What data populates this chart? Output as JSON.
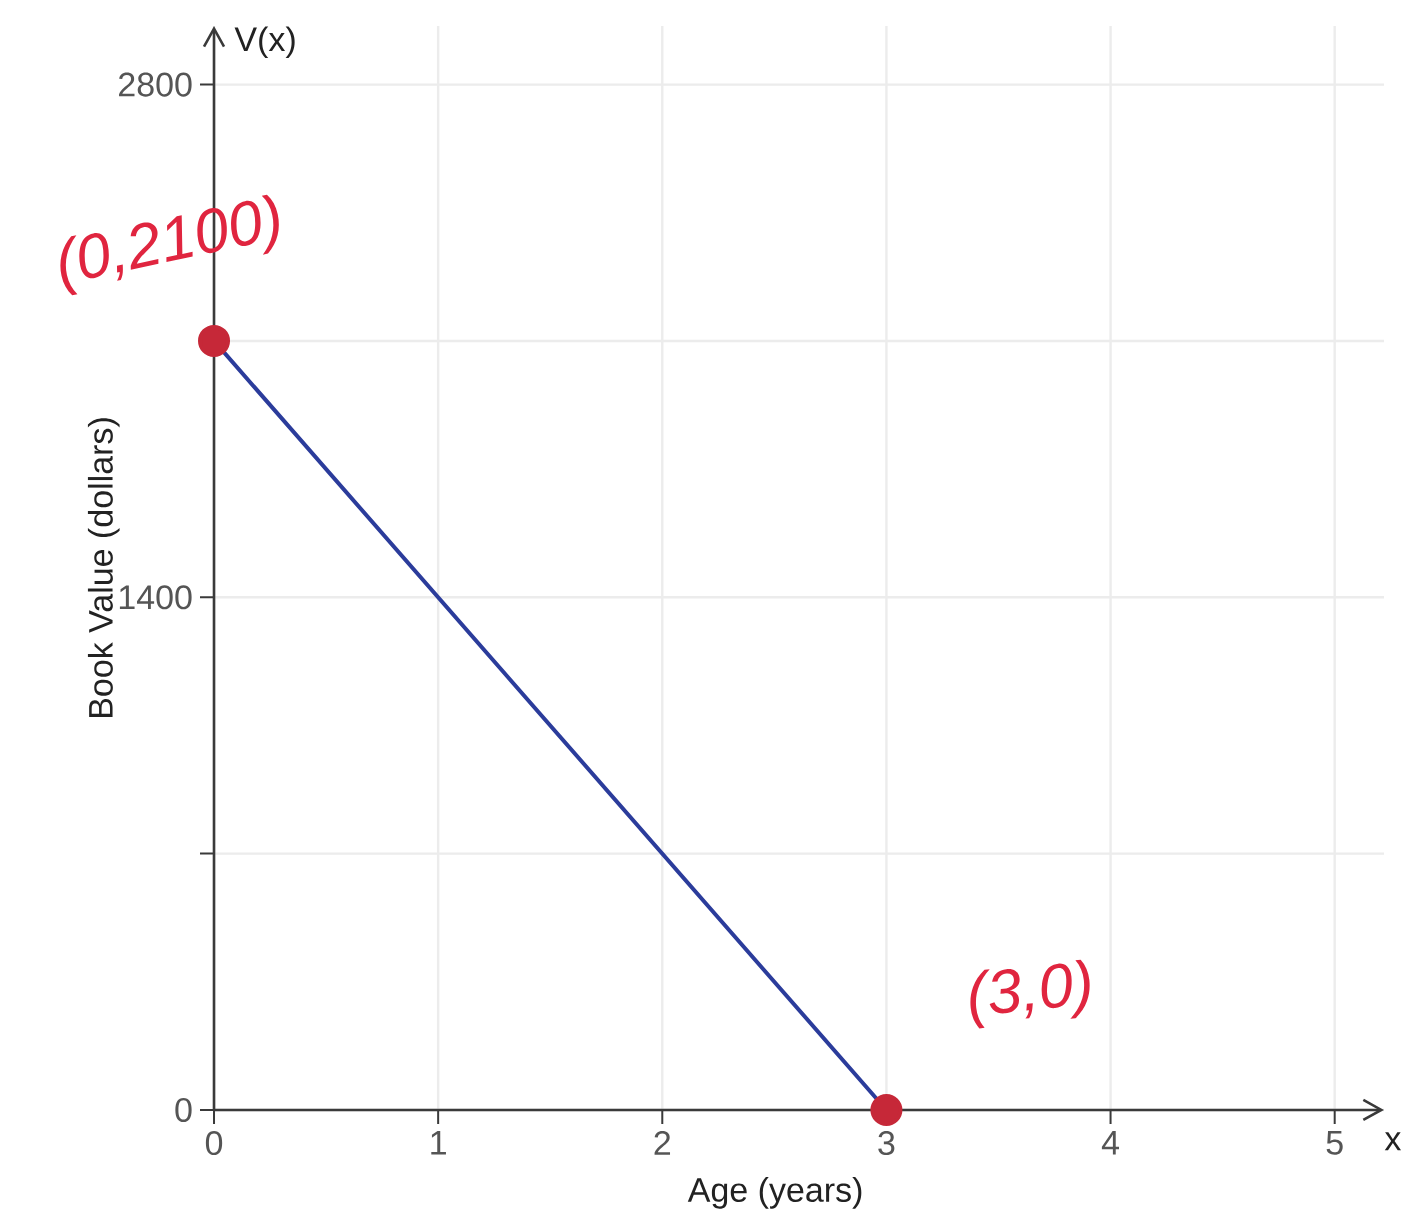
{
  "chart_data": {
    "type": "line",
    "xlabel": "Age (years)",
    "ylabel": "Book Value (dollars)",
    "x": [
      0,
      3
    ],
    "series": [
      {
        "color": "#2b3c9b",
        "values": [
          2100,
          0
        ],
        "line_style": "solid"
      },
      {
        "type": "scatter",
        "color": "#c62838",
        "values": [
          2100,
          0
        ],
        "marker": "circle"
      }
    ],
    "xlim": [
      0,
      5.22
    ],
    "ylim": [
      0,
      2960
    ],
    "xticks": [
      0,
      1,
      2,
      3,
      4,
      5
    ],
    "yticks": [
      0,
      {
        "value": 700,
        "label": null
      },
      1400,
      {
        "value": 2100,
        "label": null
      },
      2800
    ],
    "grid": true,
    "annotations": [
      {
        "text": "(0,2100)",
        "x": 0,
        "y": 2100
      },
      {
        "text": "(3,0)",
        "x": 3,
        "y": 0
      },
      "V(x)",
      "x"
    ]
  }
}
